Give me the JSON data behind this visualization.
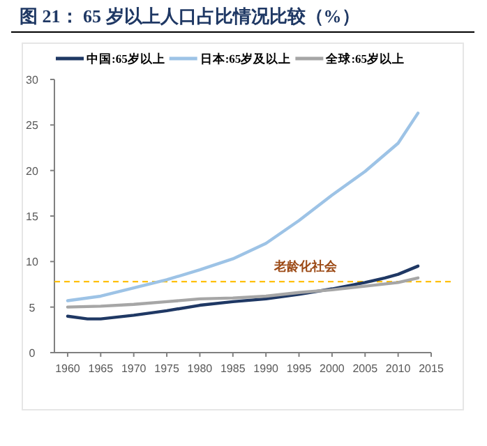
{
  "chart_data": {
    "type": "line",
    "title": "图 21：  65 岁以上人口占比情况比较（%）",
    "xlim": [
      1958,
      2015
    ],
    "xticks": [
      1960,
      1965,
      1970,
      1975,
      1980,
      1985,
      1990,
      1995,
      2000,
      2005,
      2010,
      2015
    ],
    "ylim": [
      0,
      30
    ],
    "yticks": [
      0,
      5,
      10,
      15,
      20,
      25,
      30
    ],
    "legend": "top",
    "series": [
      {
        "name": "中国:65岁以上",
        "color": "#1f3864",
        "x": [
          1960,
          1963,
          1965,
          1970,
          1975,
          1980,
          1985,
          1990,
          1995,
          2000,
          2005,
          2008,
          2010,
          2013
        ],
        "values": [
          4.0,
          3.7,
          3.7,
          4.1,
          4.6,
          5.2,
          5.6,
          5.9,
          6.4,
          7.0,
          7.7,
          8.2,
          8.6,
          9.5
        ]
      },
      {
        "name": "日本:65岁及以上",
        "color": "#9dc3e6",
        "x": [
          1960,
          1965,
          1970,
          1975,
          1980,
          1985,
          1990,
          1995,
          2000,
          2005,
          2010,
          2013
        ],
        "values": [
          5.7,
          6.2,
          7.1,
          8.0,
          9.1,
          10.3,
          12.0,
          14.5,
          17.3,
          19.9,
          23.0,
          26.3
        ]
      },
      {
        "name": "全球:65岁以上",
        "color": "#a6a6a6",
        "x": [
          1960,
          1965,
          1970,
          1975,
          1980,
          1985,
          1990,
          1995,
          2000,
          2005,
          2010,
          2013
        ],
        "values": [
          5.0,
          5.1,
          5.3,
          5.6,
          5.9,
          6.0,
          6.2,
          6.6,
          6.9,
          7.3,
          7.7,
          8.2
        ]
      }
    ],
    "ref_lines": [
      {
        "axis": "y",
        "value": 7.8,
        "label": "老龄化社会",
        "color": "#ffc000",
        "line_style": "dashed"
      }
    ]
  }
}
